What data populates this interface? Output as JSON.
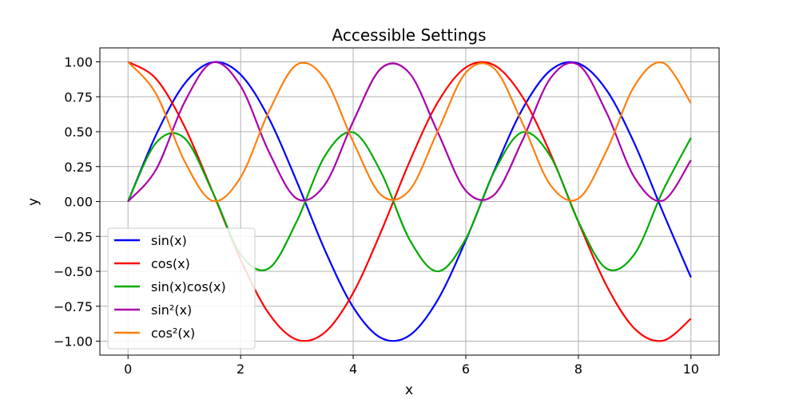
{
  "chart_data": {
    "type": "line",
    "title": "Accessible Settings",
    "xlabel": "x",
    "ylabel": "y",
    "xlim": [
      -0.5,
      10.5
    ],
    "ylim": [
      -1.1,
      1.1
    ],
    "x_ticks": [
      0,
      2,
      4,
      6,
      8,
      10
    ],
    "x_tick_labels": [
      "0",
      "2",
      "4",
      "6",
      "8",
      "10"
    ],
    "y_ticks": [
      -1.0,
      -0.75,
      -0.5,
      -0.25,
      0.0,
      0.25,
      0.5,
      0.75,
      1.0
    ],
    "y_tick_labels": [
      "−1.00",
      "−0.75",
      "−0.50",
      "−0.25",
      "0.00",
      "0.25",
      "0.50",
      "0.75",
      "1.00"
    ],
    "grid": true,
    "legend_position": "lower-left",
    "x": [
      0,
      0.5,
      1,
      1.5,
      2,
      2.5,
      3,
      3.5,
      4,
      4.5,
      5,
      5.5,
      6,
      6.5,
      7,
      7.5,
      8,
      8.5,
      9,
      9.5,
      10
    ],
    "series": [
      {
        "name": "sin(x)",
        "color": "#0000ff",
        "values": [
          0.0,
          0.479,
          0.841,
          0.997,
          0.909,
          0.598,
          0.141,
          -0.351,
          -0.757,
          -0.978,
          -0.959,
          -0.706,
          -0.279,
          0.215,
          0.657,
          0.938,
          0.989,
          0.798,
          0.412,
          -0.075,
          -0.544
        ]
      },
      {
        "name": "cos(x)",
        "color": "#ff0000",
        "values": [
          1.0,
          0.878,
          0.54,
          0.071,
          -0.416,
          -0.801,
          -0.99,
          -0.936,
          -0.654,
          -0.211,
          0.284,
          0.709,
          0.96,
          0.977,
          0.754,
          0.347,
          -0.146,
          -0.602,
          -0.911,
          -0.997,
          -0.839
        ]
      },
      {
        "name": "sin(x)cos(x)",
        "color": "#00aa00",
        "values": [
          0.0,
          0.421,
          0.455,
          0.071,
          -0.378,
          -0.479,
          -0.14,
          0.328,
          0.495,
          0.206,
          -0.272,
          -0.5,
          -0.268,
          0.21,
          0.495,
          0.326,
          -0.144,
          -0.48,
          -0.375,
          0.075,
          0.456
        ]
      },
      {
        "name": "sin²(x)",
        "color": "#aa00aa",
        "values": [
          0.0,
          0.23,
          0.708,
          0.995,
          0.827,
          0.358,
          0.02,
          0.123,
          0.573,
          0.955,
          0.919,
          0.498,
          0.078,
          0.046,
          0.432,
          0.88,
          0.979,
          0.637,
          0.17,
          0.006,
          0.296
        ]
      },
      {
        "name": "cos²(x)",
        "color": "#ff7f0e",
        "values": [
          1.0,
          0.77,
          0.292,
          0.005,
          0.173,
          0.642,
          0.98,
          0.877,
          0.427,
          0.045,
          0.081,
          0.502,
          0.922,
          0.954,
          0.568,
          0.12,
          0.021,
          0.363,
          0.83,
          0.994,
          0.704
        ]
      }
    ]
  }
}
